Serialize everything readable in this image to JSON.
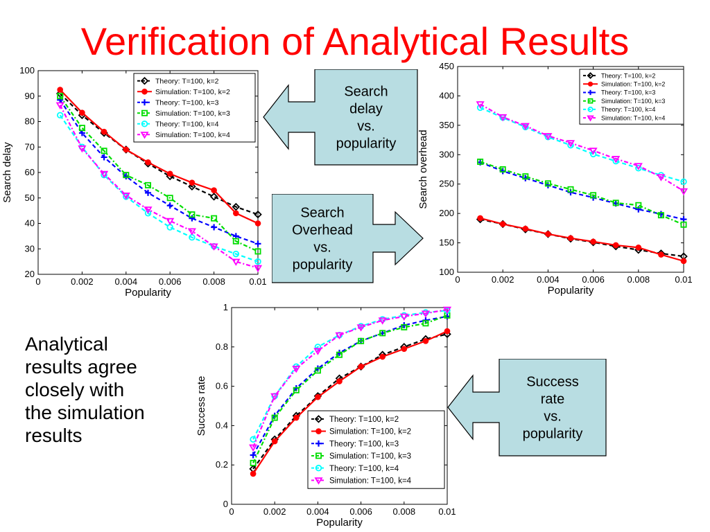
{
  "slide": {
    "title": "Verification of Analytical Results",
    "title_color": "#ff0000",
    "body_lines": [
      "Analytical",
      "results agree",
      "closely with",
      "the simulation",
      "results"
    ]
  },
  "callouts": [
    {
      "lines": [
        "Search",
        "delay",
        "vs.",
        "popularity"
      ],
      "direction": "left",
      "fill": "#b8dde2"
    },
    {
      "lines": [
        "Search",
        "Overhead",
        "vs.",
        "popularity"
      ],
      "direction": "right",
      "fill": "#b8dde2"
    },
    {
      "lines": [
        "Success",
        "rate",
        "vs.",
        "popularity"
      ],
      "direction": "left",
      "fill": "#b8dde2"
    }
  ],
  "series_styles": [
    {
      "color": "#000000",
      "marker": "diamond",
      "dash": "6,4"
    },
    {
      "color": "#ff0000",
      "marker": "circle-filled",
      "dash": ""
    },
    {
      "color": "#0000ff",
      "marker": "plus",
      "dash": "6,4"
    },
    {
      "color": "#00dd00",
      "marker": "square",
      "dash": "6,3,2,3"
    },
    {
      "color": "#00ffff",
      "marker": "circle",
      "dash": "6,4"
    },
    {
      "color": "#ff00ff",
      "marker": "triangle-down",
      "dash": "6,3,2,3"
    }
  ],
  "chart_data": [
    {
      "type": "line",
      "xlabel": "Popularity",
      "ylabel": "Search delay",
      "xlim": [
        0,
        0.01
      ],
      "ylim": [
        20,
        100
      ],
      "xticks": [
        "0",
        "0.002",
        "0.004",
        "0.006",
        "0.008",
        "0.01"
      ],
      "yticks": [
        "20",
        "30",
        "40",
        "50",
        "60",
        "70",
        "80",
        "90",
        "100"
      ],
      "legend_position": "top-right",
      "x": [
        0.001,
        0.002,
        0.003,
        0.004,
        0.005,
        0.006,
        0.007,
        0.008,
        0.009,
        0.01
      ],
      "series": [
        {
          "name": "Theory: T=100, k=2",
          "values": [
            91,
            82.5,
            75.5,
            69,
            63.5,
            58.5,
            54.5,
            50.5,
            46.5,
            43.5
          ]
        },
        {
          "name": "Simulation: T=100, k=2",
          "values": [
            92.5,
            83.5,
            76,
            69,
            64,
            59.5,
            56,
            53,
            44,
            40
          ]
        },
        {
          "name": "Theory: T=100, k=3",
          "values": [
            88.5,
            75.5,
            66,
            58.5,
            52,
            47,
            42,
            38.5,
            35,
            32
          ]
        },
        {
          "name": "Simulation: T=100, k=3",
          "values": [
            90,
            77.5,
            68.5,
            59,
            55,
            50,
            43.5,
            42,
            33,
            29
          ]
        },
        {
          "name": "Theory: T=100, k=4",
          "values": [
            82.5,
            70,
            59,
            50.5,
            44,
            38.5,
            34.5,
            31,
            28,
            25
          ]
        },
        {
          "name": "Simulation: T=100, k=4",
          "values": [
            86.5,
            69.5,
            59.5,
            51,
            45.5,
            41,
            37,
            31,
            25,
            22.5
          ]
        }
      ]
    },
    {
      "type": "line",
      "xlabel": "Popularity",
      "ylabel": "Search overhead",
      "xlim": [
        0,
        0.01
      ],
      "ylim": [
        100,
        450
      ],
      "xticks": [
        "0",
        "0.002",
        "0.004",
        "0.006",
        "0.008",
        "0.01"
      ],
      "yticks": [
        "100",
        "150",
        "200",
        "250",
        "300",
        "350",
        "400",
        "450"
      ],
      "legend_position": "top-right",
      "x": [
        0.001,
        0.002,
        0.003,
        0.004,
        0.005,
        0.006,
        0.007,
        0.008,
        0.009,
        0.01
      ],
      "series": [
        {
          "name": "Theory: T=100, k=2",
          "values": [
            190,
            182,
            173,
            165,
            157,
            151,
            144,
            138,
            132,
            127
          ]
        },
        {
          "name": "Simulation: T=100, k=2",
          "values": [
            192,
            182,
            174,
            165,
            158,
            152,
            146,
            142,
            130,
            119
          ]
        },
        {
          "name": "Theory: T=100, k=3",
          "values": [
            287,
            272,
            260,
            248,
            236,
            227,
            217,
            207,
            199,
            190
          ]
        },
        {
          "name": "Simulation: T=100, k=3",
          "values": [
            288,
            275,
            263,
            251,
            241,
            231,
            218,
            214,
            197,
            181
          ]
        },
        {
          "name": "Theory: T=100, k=4",
          "values": [
            380,
            363,
            347,
            330,
            316,
            301,
            289,
            277,
            265,
            254
          ]
        },
        {
          "name": "Simulation: T=100, k=4",
          "values": [
            386,
            364,
            349,
            332,
            320,
            307,
            293,
            281,
            262,
            238
          ]
        }
      ]
    },
    {
      "type": "line",
      "xlabel": "Popularity",
      "ylabel": "Success rate",
      "xlim": [
        0,
        0.01
      ],
      "ylim": [
        0,
        1
      ],
      "xticks": [
        "0",
        "0.002",
        "0.004",
        "0.006",
        "0.008",
        "0.01"
      ],
      "yticks": [
        "0",
        "0.2",
        "0.4",
        "0.6",
        "0.8",
        "1"
      ],
      "legend_position": "bottom-right",
      "x": [
        0.001,
        0.002,
        0.003,
        0.004,
        0.005,
        0.006,
        0.007,
        0.008,
        0.009,
        0.01
      ],
      "series": [
        {
          "name": "Theory: T=100, k=2",
          "values": [
            0.18,
            0.33,
            0.45,
            0.55,
            0.64,
            0.7,
            0.76,
            0.8,
            0.84,
            0.865
          ]
        },
        {
          "name": "Simulation: T=100, k=2",
          "values": [
            0.155,
            0.32,
            0.44,
            0.545,
            0.625,
            0.7,
            0.75,
            0.79,
            0.83,
            0.88
          ]
        },
        {
          "name": "Theory: T=100, k=3",
          "values": [
            0.25,
            0.45,
            0.59,
            0.69,
            0.77,
            0.83,
            0.87,
            0.91,
            0.935,
            0.955
          ]
        },
        {
          "name": "Simulation: T=100, k=3",
          "values": [
            0.21,
            0.44,
            0.58,
            0.68,
            0.76,
            0.83,
            0.87,
            0.9,
            0.92,
            0.96
          ]
        },
        {
          "name": "Theory: T=100, k=4",
          "values": [
            0.33,
            0.55,
            0.7,
            0.8,
            0.86,
            0.905,
            0.94,
            0.96,
            0.975,
            0.985
          ]
        },
        {
          "name": "Simulation: T=100, k=4",
          "values": [
            0.29,
            0.55,
            0.69,
            0.78,
            0.86,
            0.9,
            0.935,
            0.955,
            0.97,
            0.99
          ]
        }
      ]
    }
  ]
}
